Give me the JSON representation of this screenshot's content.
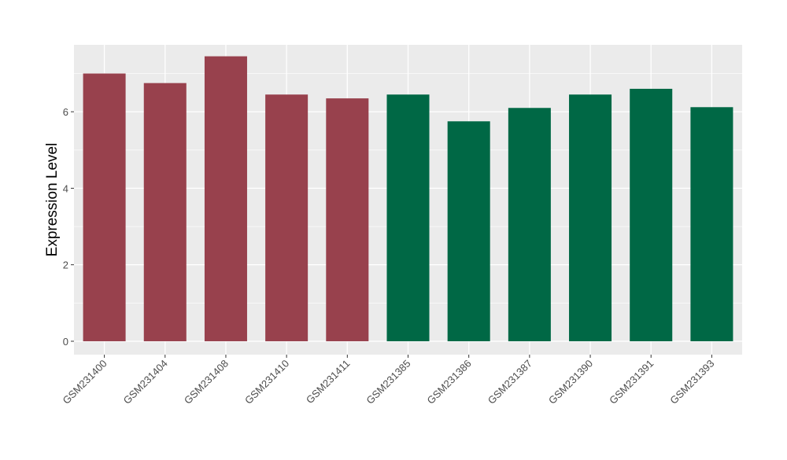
{
  "chart_data": {
    "type": "bar",
    "title": "",
    "xlabel": "",
    "ylabel": "Expression Level",
    "categories": [
      "GSM231400",
      "GSM231404",
      "GSM231408",
      "GSM231410",
      "GSM231411",
      "GSM231385",
      "GSM231386",
      "GSM231387",
      "GSM231390",
      "GSM231391",
      "GSM231393"
    ],
    "values": [
      7.0,
      6.75,
      7.45,
      6.45,
      6.35,
      6.45,
      5.75,
      6.1,
      6.45,
      6.6,
      6.12
    ],
    "bar_colors": [
      "#98414D",
      "#98414D",
      "#98414D",
      "#98414D",
      "#98414D",
      "#006845",
      "#006845",
      "#006845",
      "#006845",
      "#006845",
      "#006845"
    ],
    "ylim": [
      -0.35,
      7.75
    ],
    "yticks": [
      0,
      2,
      4,
      6
    ],
    "grid": true,
    "legend": "none",
    "panel_background": "#EBEBEB",
    "grid_color": "#FFFFFF"
  }
}
